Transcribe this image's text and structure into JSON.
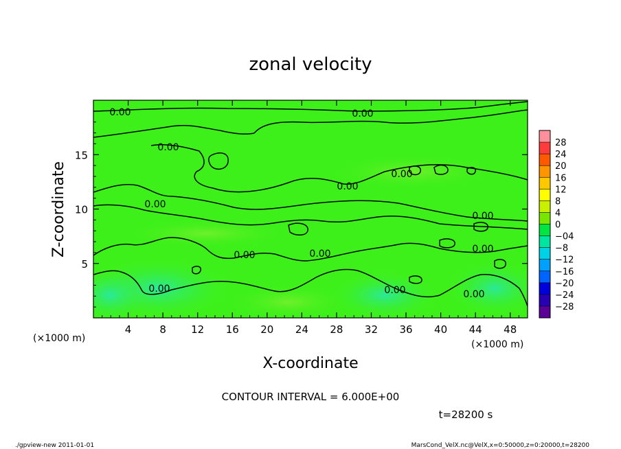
{
  "chart_data": {
    "type": "heatmap",
    "title": "zonal velocity",
    "xlabel": "X-coordinate",
    "ylabel": "Z-coordinate",
    "x_unit": "(×1000 m)",
    "xlim": [
      0,
      50
    ],
    "ylim": [
      0,
      20
    ],
    "x_ticks": [
      4,
      8,
      12,
      16,
      20,
      24,
      28,
      32,
      36,
      40,
      44,
      48
    ],
    "y_ticks": [
      5,
      10,
      15
    ],
    "contour_interval_label": "CONTOUR INTERVAL = 6.000E+00",
    "contour_labels": [
      "0.00",
      "0.00",
      "0.00",
      "0.00",
      "0.00",
      "0.00",
      "0.00",
      "0.00",
      "0.00",
      "0.00",
      "0.00",
      "0.00",
      "0.00"
    ],
    "time_label": "t=28200 s",
    "colorbar": {
      "levels": [
        28,
        24,
        20,
        16,
        12,
        8,
        4,
        0,
        -4,
        -8,
        -12,
        -16,
        -20,
        -24,
        -28
      ],
      "level_labels": [
        "28",
        "24",
        "20",
        "16",
        "12",
        "8",
        "4",
        "0",
        "−04",
        "−8",
        "−12",
        "−16",
        "−20",
        "−24",
        "−28"
      ],
      "colors": [
        "#ff8f9a",
        "#ff3c3c",
        "#ff5a00",
        "#ff9600",
        "#ffc800",
        "#ffff00",
        "#c8f000",
        "#78e600",
        "#00e640",
        "#00e6a0",
        "#00d2e6",
        "#00a0ff",
        "#0064ff",
        "#0000dc",
        "#2800b4",
        "#5a0096"
      ]
    }
  },
  "footer": {
    "left": "./gpview-new   2011-01-01",
    "right": "MarsCond_VelX.nc@VelX,x=0:50000,z=0:20000,t=28200"
  },
  "colors": {
    "field_green": "#3ef01a",
    "field_light": "#5cf028",
    "field_cyan": "#30ecaa"
  }
}
